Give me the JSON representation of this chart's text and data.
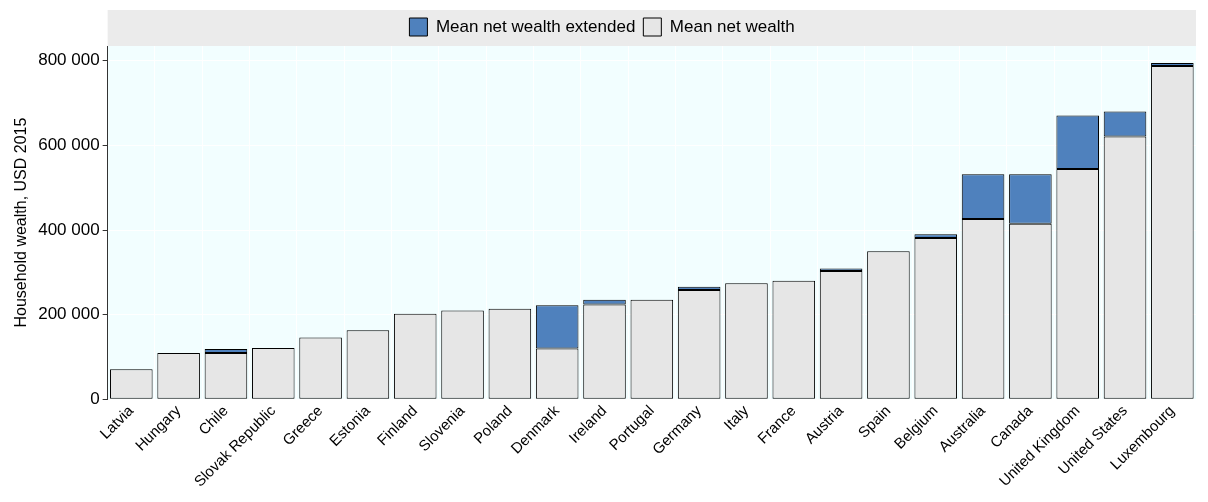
{
  "chart_data": {
    "type": "bar",
    "stacked": true,
    "ylabel": "Household wealth, USD 2015",
    "categories": [
      "Latvia",
      "Hungary",
      "Chile",
      "Slovak Republic",
      "Greece",
      "Estonia",
      "Finland",
      "Slovenia",
      "Poland",
      "Denmark",
      "Ireland",
      "Portugal",
      "Germany",
      "Italy",
      "France",
      "Austria",
      "Spain",
      "Belgium",
      "Australia",
      "Canada",
      "United Kingdom",
      "United States",
      "Luxembourg"
    ],
    "series": [
      {
        "name": "Mean net wealth",
        "color": "#e6e6e6",
        "values": [
          71000,
          109000,
          109000,
          121000,
          146000,
          163000,
          202000,
          210000,
          214000,
          120000,
          224000,
          235000,
          258000,
          274000,
          280000,
          303000,
          350000,
          381000,
          426000,
          415000,
          544000,
          621000,
          788000
        ]
      },
      {
        "name": "Mean net wealth extended",
        "color": "#4f81bd",
        "values": [
          0,
          0,
          10000,
          0,
          0,
          0,
          0,
          0,
          0,
          102000,
          11000,
          0,
          8000,
          0,
          0,
          6000,
          0,
          9000,
          106000,
          117000,
          127000,
          59000,
          7000
        ]
      }
    ],
    "ylim": [
      0,
      835000
    ],
    "yticks": [
      {
        "value": 0,
        "label": "0"
      },
      {
        "value": 200000,
        "label": "200 000"
      },
      {
        "value": 400000,
        "label": "400 000"
      },
      {
        "value": 600000,
        "label": "600 000"
      },
      {
        "value": 800000,
        "label": "800 000"
      }
    ],
    "grid": true,
    "legend": "top"
  }
}
